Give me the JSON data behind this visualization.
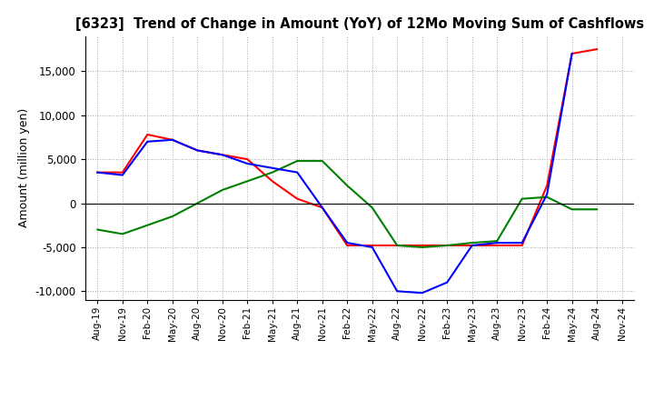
{
  "title": "[6323]  Trend of Change in Amount (YoY) of 12Mo Moving Sum of Cashflows",
  "ylabel": "Amount (million yen)",
  "ylim": [
    -11000,
    19000
  ],
  "yticks": [
    -10000,
    -5000,
    0,
    5000,
    10000,
    15000
  ],
  "x_labels": [
    "Aug-19",
    "Nov-19",
    "Feb-20",
    "May-20",
    "Aug-20",
    "Nov-20",
    "Feb-21",
    "May-21",
    "Aug-21",
    "Nov-21",
    "Feb-22",
    "May-22",
    "Aug-22",
    "Nov-22",
    "Feb-23",
    "May-23",
    "Aug-23",
    "Nov-23",
    "Feb-24",
    "May-24",
    "Aug-24",
    "Nov-24"
  ],
  "operating_cashflow": [
    3500,
    3500,
    7800,
    7200,
    6000,
    5500,
    5000,
    2500,
    500,
    -500,
    -4800,
    -4800,
    -4800,
    -4800,
    -4800,
    -4800,
    -4800,
    -4800,
    2000,
    17000,
    17500,
    null
  ],
  "investing_cashflow": [
    -3000,
    -3500,
    -2500,
    -1500,
    0,
    1500,
    2500,
    3500,
    4800,
    4800,
    2000,
    -500,
    -4800,
    -5000,
    -4800,
    -4500,
    -4300,
    500,
    700,
    -700,
    -700,
    null
  ],
  "free_cashflow": [
    3500,
    3200,
    7000,
    7200,
    6000,
    5500,
    4500,
    4000,
    3500,
    -500,
    -4500,
    -5000,
    -10000,
    -10200,
    -9000,
    -4800,
    -4500,
    -4500,
    1000,
    17000,
    null,
    null
  ],
  "operating_color": "#ff0000",
  "investing_color": "#008000",
  "free_color": "#0000ff",
  "grid_color": "#aaaaaa",
  "background_color": "#ffffff"
}
